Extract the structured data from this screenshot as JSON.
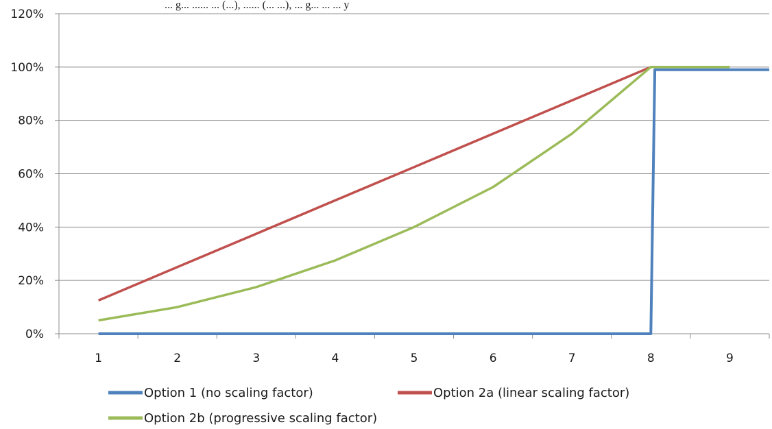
{
  "header_fragment": "... g... ...... ... (...), ...... (... ...), ... g... ... ... y",
  "chart_data": {
    "type": "line",
    "title": "",
    "xlabel": "",
    "ylabel": "",
    "x": [
      1,
      2,
      3,
      4,
      5,
      6,
      7,
      8,
      9
    ],
    "x_tick_labels": [
      "1",
      "2",
      "3",
      "4",
      "5",
      "6",
      "7",
      "8",
      "9"
    ],
    "xlim": [
      0.5,
      9.5
    ],
    "ylim": [
      0,
      120
    ],
    "y_ticks": [
      0,
      20,
      40,
      60,
      80,
      100,
      120
    ],
    "y_tick_labels": [
      "0%",
      "20%",
      "40%",
      "60%",
      "80%",
      "100%",
      "120%"
    ],
    "grid": "horizontal",
    "legend_position": "bottom",
    "series": [
      {
        "name": "Option 1 (no scaling factor)",
        "color": "#4f81bd",
        "points": [
          [
            1,
            0
          ],
          [
            2,
            0
          ],
          [
            3,
            0
          ],
          [
            4,
            0
          ],
          [
            5,
            0
          ],
          [
            6,
            0
          ],
          [
            7,
            0
          ],
          [
            8,
            0
          ],
          [
            8.05,
            99
          ],
          [
            9.5,
            99
          ]
        ]
      },
      {
        "name": "Option 2a (linear scaling factor)",
        "color": "#c0504d",
        "points": [
          [
            1,
            12.5
          ],
          [
            2,
            25
          ],
          [
            3,
            37.5
          ],
          [
            4,
            50
          ],
          [
            5,
            62.5
          ],
          [
            6,
            75
          ],
          [
            7,
            87.5
          ],
          [
            8,
            100
          ]
        ]
      },
      {
        "name": "Option 2b (progressive scaling factor)",
        "color": "#9bbb59",
        "points": [
          [
            1,
            5
          ],
          [
            2,
            10
          ],
          [
            3,
            17.5
          ],
          [
            4,
            27.5
          ],
          [
            5,
            40
          ],
          [
            6,
            55
          ],
          [
            7,
            75
          ],
          [
            8,
            100
          ],
          [
            9,
            100
          ]
        ]
      }
    ]
  }
}
